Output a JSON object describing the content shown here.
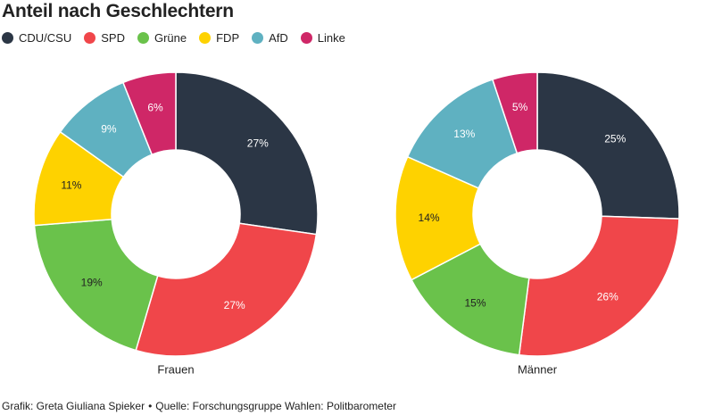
{
  "header": {
    "title": "Anteil nach Geschlechtern"
  },
  "legend": [
    {
      "label": "CDU/CSU",
      "color": "#2b3645"
    },
    {
      "label": "SPD",
      "color": "#f0464a"
    },
    {
      "label": "Grüne",
      "color": "#6ac24b"
    },
    {
      "label": "FDP",
      "color": "#fed200"
    },
    {
      "label": "AfD",
      "color": "#5fb1c1"
    },
    {
      "label": "Linke",
      "color": "#cf2767"
    }
  ],
  "chart_data": [
    {
      "type": "pie",
      "variant": "donut",
      "label": "Frauen",
      "categories": [
        "CDU/CSU",
        "SPD",
        "Grüne",
        "FDP",
        "AfD",
        "Linke"
      ],
      "values": [
        27,
        27,
        19,
        11,
        9,
        6
      ],
      "value_labels": [
        "27%",
        "27%",
        "19%",
        "11%",
        "9%",
        "6%"
      ]
    },
    {
      "type": "pie",
      "variant": "donut",
      "label": "Männer",
      "categories": [
        "CDU/CSU",
        "SPD",
        "Grüne",
        "FDP",
        "AfD",
        "Linke"
      ],
      "values": [
        25,
        26,
        15,
        14,
        13,
        5
      ],
      "value_labels": [
        "25%",
        "26%",
        "15%",
        "14%",
        "13%",
        "5%"
      ]
    }
  ],
  "footer": {
    "credit": "Grafik: Greta Giuliana Spieker",
    "separator": "•",
    "source": "Quelle: Forschungsgruppe Wahlen: Politbarometer"
  }
}
